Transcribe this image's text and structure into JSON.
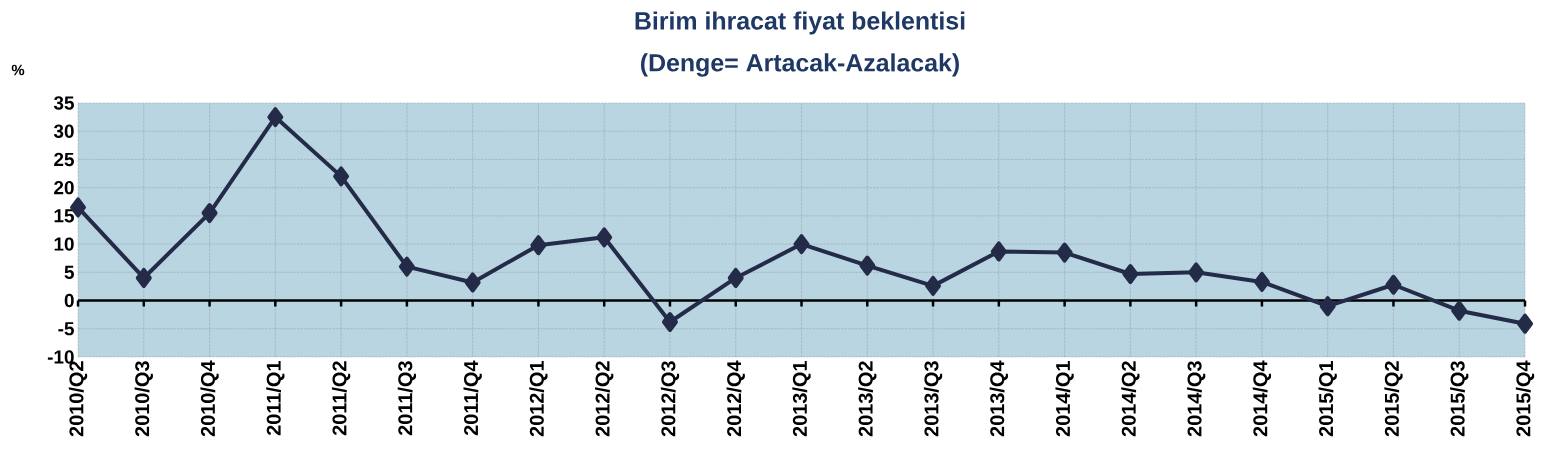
{
  "chart_data": {
    "type": "line",
    "title": "Birim ihracat fiyat beklentisi",
    "subtitle": "(Denge= Artacak-Azalacak)",
    "ylabel": "%",
    "categories": [
      "2010/Q2",
      "2010/Q3",
      "2010/Q4",
      "2011/Q1",
      "2011/Q2",
      "2011/Q3",
      "2011/Q4",
      "2012/Q1",
      "2012/Q2",
      "2012/Q3",
      "2012/Q4",
      "2013/Q1",
      "2013/Q2",
      "2013/Q3",
      "2013/Q4",
      "2014/Q1",
      "2014/Q2",
      "2014/Q3",
      "2014/Q4",
      "2015/Q1",
      "2015/Q2",
      "2015/Q3",
      "2015/Q4"
    ],
    "series": [
      {
        "color": "#232b48",
        "values": [
          16.5,
          4,
          15.5,
          32.5,
          22,
          6,
          3.2,
          9.8,
          11.2,
          -3.8,
          4,
          10,
          6.2,
          2.6,
          8.7,
          8.5,
          4.7,
          5,
          3.3,
          -1,
          2.8,
          -1.8,
          -4.1
        ]
      }
    ],
    "ylim": [
      -10,
      35
    ],
    "yticks": [
      -10,
      -5,
      0,
      5,
      10,
      15,
      20,
      25,
      30,
      35
    ],
    "grid": true,
    "marker": "diamond",
    "line_style": "solid"
  }
}
